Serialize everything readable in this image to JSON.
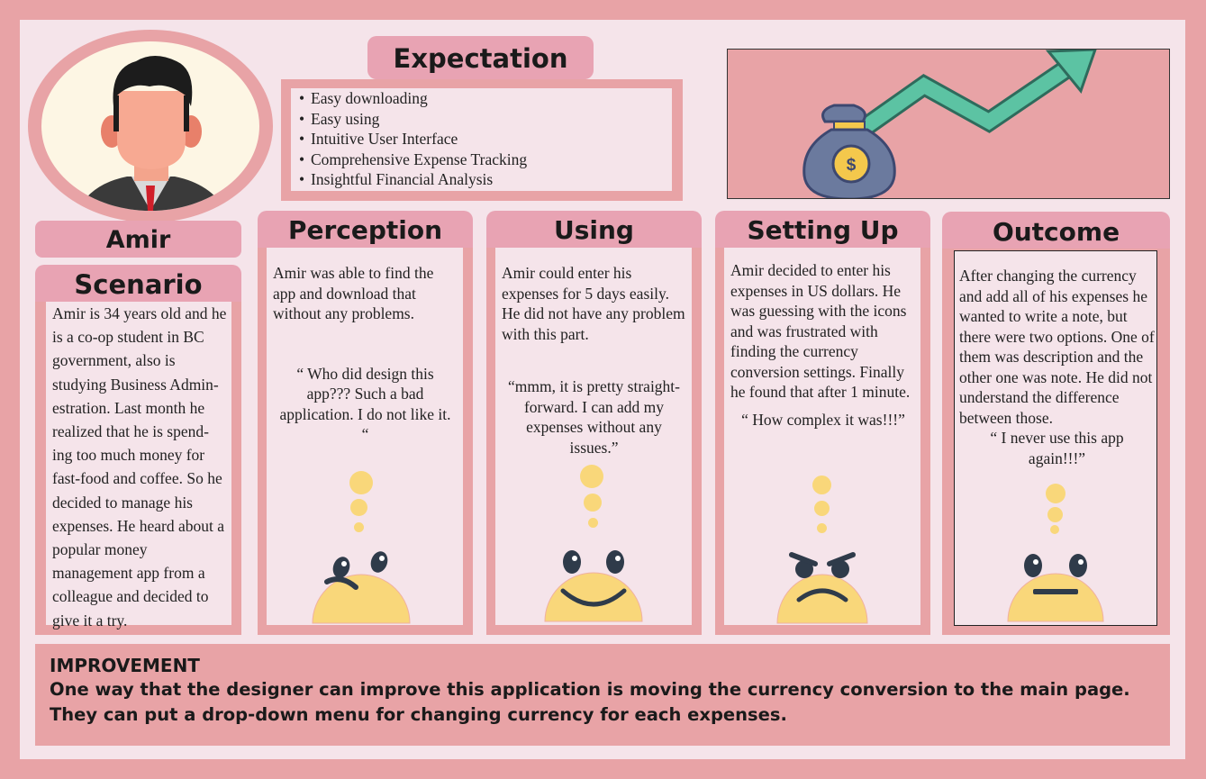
{
  "persona": {
    "name": "Amir"
  },
  "expectation": {
    "title": "Expectation",
    "items": [
      "Easy downloading",
      "Easy using",
      "Intuitive User Interface",
      "Comprehensive Expense Tracking",
      "Insightful Financial Analysis"
    ]
  },
  "money_bag_symbol": "$",
  "scenario": {
    "title": "Scenario",
    "text": " Amir is 34 years old and he is a co-op student in BC government, also is studying Business Admin-estration. Last month he realized that he is spend-ing too much money for fast-food and coffee. So he decided to manage his expenses. He heard about a popular  money management app from a colleague and decided to give it a try."
  },
  "stages": [
    {
      "title": "Perception",
      "text": "Amir was able to find the app and download that without any problems.",
      "quote": "“ Who did design this app??? Such a bad application. I do not like it. “",
      "emotion": "confused"
    },
    {
      "title": "Using",
      "text": "Amir could enter his expenses for 5 days easily. He did not have any problem with this part.",
      "quote": "“mmm, it is pretty straight-forward. I can add my expenses without any issues.”",
      "emotion": "happy"
    },
    {
      "title": "Setting Up",
      "text": "Amir decided to enter his expenses in US dollars. He was guessing with the icons and was frustrated with finding the currency conversion settings. Finally he found that after 1 minute.",
      "quote": "“ How complex it was!!!”",
      "emotion": "angry"
    },
    {
      "title": "Outcome",
      "text": "After changing the currency and add all of his expenses he wanted to write a note, but there were two options. One of them was description and the other one was note. He did not understand the difference between those.",
      "quote": "“ I never use this app again!!!”",
      "emotion": "neutral"
    }
  ],
  "improvement": {
    "heading": "IMPROVEMENT",
    "text": "One way that the designer can improve this application is moving the currency conversion to the main page. They can put a drop-down menu for changing currency for each expenses."
  },
  "colors": {
    "frame": "#e8a3a6",
    "panel": "#f5e4ea",
    "tab": "#e8a3b3",
    "emoji": "#f9d77a",
    "arrow": "#5cc3a3",
    "bag": "#6b7a9e"
  }
}
